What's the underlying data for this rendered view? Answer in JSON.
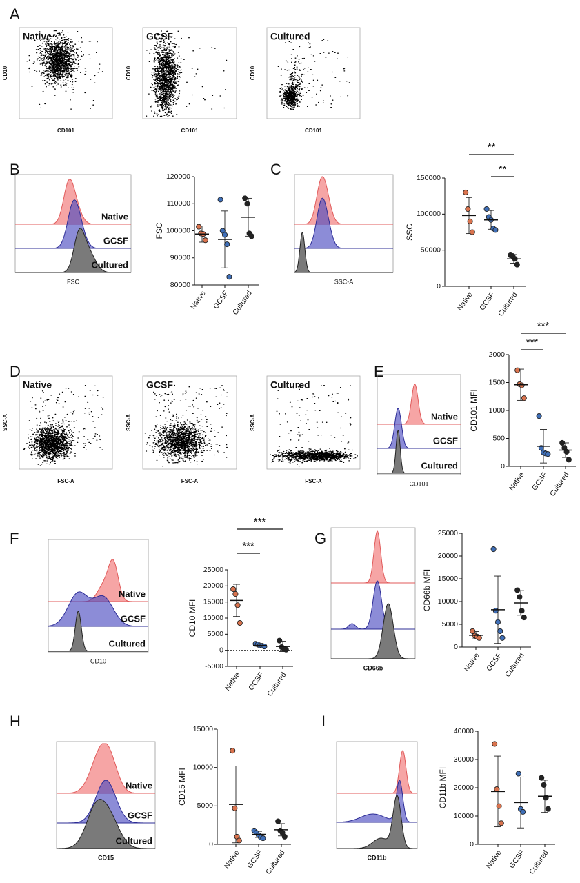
{
  "panel_labels": [
    "A",
    "B",
    "C",
    "D",
    "E",
    "F",
    "G",
    "H",
    "I"
  ],
  "flow_plots": [
    {
      "title": "Native",
      "xlabel": "CD101",
      "ylabel": "CD10"
    },
    {
      "title": "GCSF",
      "xlabel": "CD101",
      "ylabel": "CD10"
    },
    {
      "title": "Cultured",
      "xlabel": "CD101",
      "ylabel": "CD10"
    },
    {
      "title": "Native",
      "xlabel": "FSC-A",
      "ylabel": "SSC-A"
    },
    {
      "title": "GCSF",
      "xlabel": "FSC-A",
      "ylabel": "SSC-A"
    },
    {
      "title": "Cultured",
      "xlabel": "FSC-A",
      "ylabel": "SSC-A"
    }
  ],
  "histograms": [
    {
      "xlabel": "FSC",
      "labels": [
        "Native",
        "GCSF",
        "Cultured"
      ]
    },
    {
      "xlabel": "SSC-A"
    },
    {
      "xlabel": "CD101",
      "labels": [
        "Native",
        "GCSF",
        "Cultured"
      ]
    },
    {
      "xlabel": "CD10",
      "labels": [
        "Native",
        "GCSF",
        "Cultured"
      ]
    },
    {
      "xlabel": "CD66b"
    },
    {
      "xlabel": "CD15",
      "labels": [
        "Native",
        "GCSF",
        "Cultured"
      ]
    },
    {
      "xlabel": "CD11b"
    }
  ],
  "chart_data": [
    {
      "type": "dotplot",
      "ylabel": "FSC",
      "categories": [
        "Native",
        "GCSF",
        "Cultured"
      ],
      "colors": [
        "#d9734e",
        "#3f6fb8",
        "#222222"
      ],
      "ylim": [
        80000,
        120000
      ],
      "yticks": [
        80000,
        90000,
        100000,
        110000,
        120000
      ],
      "groups": [
        {
          "points": [
            101500,
            99000,
            98800,
            96500
          ],
          "mean": 98800,
          "sd": 3000
        },
        {
          "points": [
            111500,
            100000,
            98500,
            95000,
            83000
          ],
          "mean": 96800,
          "sd": 10500
        },
        {
          "points": [
            112000,
            110000,
            99000,
            98000
          ],
          "mean": 105000,
          "sd": 7000
        }
      ]
    },
    {
      "type": "dotplot",
      "ylabel": "SSC",
      "categories": [
        "Native",
        "GCSF",
        "Cultured"
      ],
      "colors": [
        "#d9734e",
        "#3f6fb8",
        "#222222"
      ],
      "ylim": [
        0,
        150000
      ],
      "yticks": [
        0,
        50000,
        100000,
        150000
      ],
      "groups": [
        {
          "points": [
            130000,
            107000,
            90000,
            75000
          ],
          "mean": 98000,
          "sd": 25000
        },
        {
          "points": [
            107000,
            96000,
            92000,
            80000,
            78000
          ],
          "mean": 92000,
          "sd": 13000
        },
        {
          "points": [
            43000,
            42000,
            38000,
            30000
          ],
          "mean": 38000,
          "sd": 6000
        }
      ],
      "brackets": [
        {
          "from": 0,
          "to": 2,
          "label": "**"
        },
        {
          "from": 1,
          "to": 2,
          "label": "**"
        }
      ]
    },
    {
      "type": "dotplot",
      "ylabel": "CD101 MFI",
      "categories": [
        "Native",
        "GCSF",
        "Cultured"
      ],
      "colors": [
        "#d9734e",
        "#3f6fb8",
        "#222222"
      ],
      "ylim": [
        0,
        2000
      ],
      "yticks": [
        0,
        500,
        1000,
        1500,
        2000
      ],
      "groups": [
        {
          "points": [
            1720,
            1470,
            1450,
            1220
          ],
          "mean": 1460,
          "sd": 280
        },
        {
          "points": [
            900,
            330,
            250,
            230,
            220
          ],
          "mean": 360,
          "sd": 300
        },
        {
          "points": [
            420,
            330,
            260,
            120
          ],
          "mean": 290,
          "sd": 130
        }
      ],
      "brackets": [
        {
          "from": 0,
          "to": 2,
          "label": "***"
        },
        {
          "from": 0,
          "to": 1,
          "label": "***"
        }
      ]
    },
    {
      "type": "dotplot",
      "ylabel": "CD10 MFI",
      "categories": [
        "Native",
        "GCSF",
        "Cultured"
      ],
      "colors": [
        "#d9734e",
        "#3f6fb8",
        "#222222"
      ],
      "ylim": [
        -5000,
        25000
      ],
      "yticks": [
        -5000,
        0,
        5000,
        10000,
        15000,
        20000,
        25000
      ],
      "reference_line": 0,
      "groups": [
        {
          "points": [
            19000,
            17500,
            14000,
            8500
          ],
          "mean": 15500,
          "sd": 5000
        },
        {
          "points": [
            2000,
            1800,
            1500,
            1400,
            1200
          ],
          "mean": 1500,
          "sd": 500
        },
        {
          "points": [
            3000,
            1000,
            500,
            200
          ],
          "mean": 1200,
          "sd": 1600
        }
      ],
      "brackets": [
        {
          "from": 0,
          "to": 2,
          "label": "***"
        },
        {
          "from": 0,
          "to": 1,
          "label": "***"
        }
      ]
    },
    {
      "type": "dotplot",
      "ylabel": "CD66b MFI",
      "categories": [
        "Native",
        "GCSF",
        "Cultured"
      ],
      "colors": [
        "#d9734e",
        "#3f6fb8",
        "#222222"
      ],
      "ylim": [
        0,
        25000
      ],
      "yticks": [
        0,
        5000,
        10000,
        15000,
        20000,
        25000
      ],
      "groups": [
        {
          "points": [
            3500,
            2500,
            2300,
            2000
          ],
          "mean": 2600,
          "sd": 800
        },
        {
          "points": [
            21500,
            8000,
            5500,
            3500,
            2000
          ],
          "mean": 8200,
          "sd": 7400
        },
        {
          "points": [
            12500,
            11000,
            8000,
            6500
          ],
          "mean": 9700,
          "sd": 2700
        }
      ]
    },
    {
      "type": "dotplot",
      "ylabel": "CD15 MFI",
      "categories": [
        "Native",
        "GCSF",
        "Cultured"
      ],
      "colors": [
        "#d9734e",
        "#3f6fb8",
        "#222222"
      ],
      "ylim": [
        0,
        15000
      ],
      "yticks": [
        0,
        5000,
        10000,
        15000
      ],
      "groups": [
        {
          "points": [
            12200,
            4700,
            1000,
            500
          ],
          "mean": 5200,
          "sd": 5000
        },
        {
          "points": [
            1800,
            1500,
            1200,
            900,
            800
          ],
          "mean": 1300,
          "sd": 400
        },
        {
          "points": [
            3000,
            1800,
            1500,
            1000
          ],
          "mean": 1900,
          "sd": 800
        }
      ]
    },
    {
      "type": "dotplot",
      "ylabel": "CD11b MFI",
      "categories": [
        "Native",
        "GCSF",
        "Cultured"
      ],
      "colors": [
        "#d9734e",
        "#3f6fb8",
        "#222222"
      ],
      "ylim": [
        0,
        40000
      ],
      "yticks": [
        0,
        10000,
        20000,
        30000,
        40000
      ],
      "groups": [
        {
          "points": [
            35500,
            19500,
            13500,
            7500
          ],
          "mean": 18700,
          "sd": 12500
        },
        {
          "points": [
            25000,
            12500,
            11500
          ],
          "mean": 14800,
          "sd": 9000
        },
        {
          "points": [
            23500,
            21000,
            16500,
            12500
          ],
          "mean": 17000,
          "sd": 5700
        }
      ]
    }
  ]
}
